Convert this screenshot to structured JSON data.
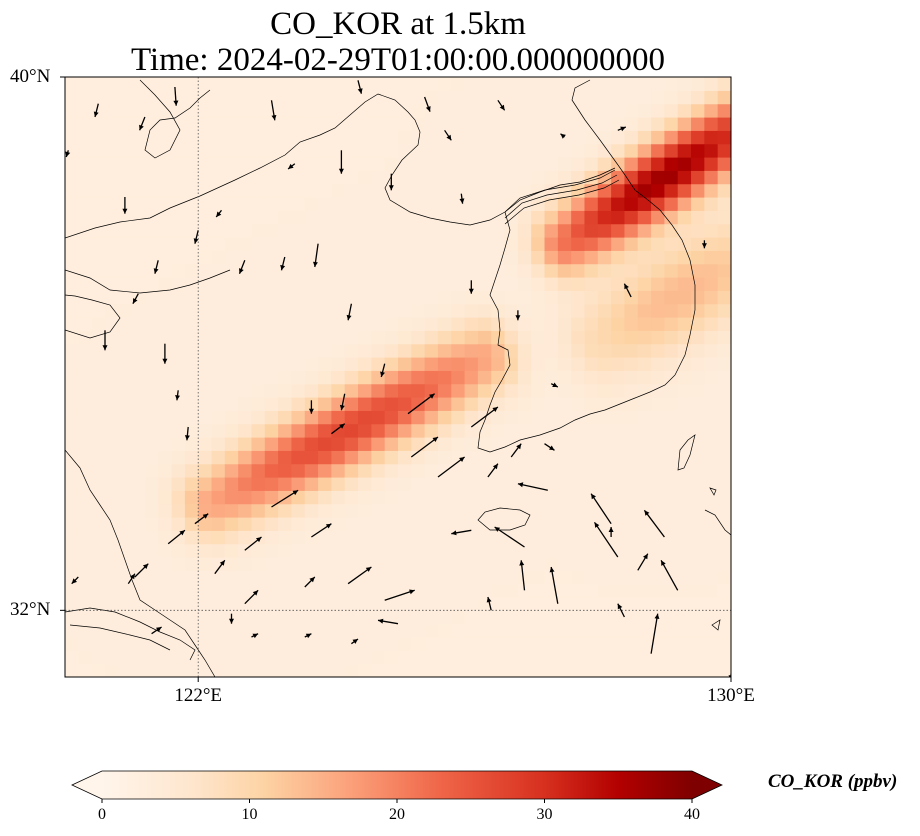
{
  "title": {
    "line1": "CO_KOR at 1.5km",
    "line2": "Time: 2024-02-29T01:00:00.000000000"
  },
  "map": {
    "lon_range": [
      120,
      130
    ],
    "lat_range": [
      31,
      40
    ],
    "lat_ticks": [
      {
        "value": 40,
        "label": "40°N"
      },
      {
        "value": 32,
        "label": "32°N"
      }
    ],
    "lon_ticks": [
      {
        "value": 122,
        "label": "122°E"
      },
      {
        "value": 130,
        "label": "130°E"
      }
    ],
    "gridlines": "dotted",
    "field": {
      "variable": "CO_KOR",
      "units": "ppbv",
      "background_ppbv": 3,
      "plumes": [
        {
          "name": "main-plume",
          "start": [
            122.2,
            33.6
          ],
          "end": [
            126.3,
            35.8
          ],
          "peak_ppbv": 24,
          "width_deg": 0.55
        },
        {
          "name": "korea-plume",
          "start": [
            127.5,
            37.5
          ],
          "end": [
            130.5,
            39.5
          ],
          "peak_ppbv": 34,
          "width_deg": 0.5
        },
        {
          "name": "east-sea-plume",
          "start": [
            128.0,
            36.0
          ],
          "end": [
            130.5,
            37.5
          ],
          "peak_ppbv": 11,
          "width_deg": 0.7
        }
      ]
    },
    "wind_vectors_degrees": [
      [
        121.65,
        39.85,
        0.02,
        -0.28
      ],
      [
        121.2,
        39.4,
        -0.08,
        -0.2
      ],
      [
        120.5,
        39.6,
        -0.05,
        -0.2
      ],
      [
        123.1,
        39.65,
        0.05,
        -0.3
      ],
      [
        124.4,
        39.95,
        0.05,
        -0.2
      ],
      [
        125.4,
        39.7,
        0.08,
        -0.22
      ],
      [
        125.7,
        39.2,
        0.1,
        -0.15
      ],
      [
        124.15,
        38.9,
        0.0,
        -0.35
      ],
      [
        124.9,
        38.55,
        0.0,
        -0.25
      ],
      [
        125.95,
        38.25,
        0.02,
        -0.15
      ],
      [
        122.0,
        37.7,
        -0.05,
        -0.2
      ],
      [
        122.7,
        37.25,
        -0.08,
        -0.2
      ],
      [
        121.4,
        37.25,
        -0.05,
        -0.2
      ],
      [
        121.1,
        36.75,
        -0.08,
        -0.15
      ],
      [
        120.9,
        38.2,
        0.0,
        -0.25
      ],
      [
        120.6,
        36.2,
        0.0,
        -0.3
      ],
      [
        121.5,
        36.0,
        0.0,
        -0.3
      ],
      [
        123.8,
        37.5,
        -0.05,
        -0.35
      ],
      [
        123.3,
        37.3,
        -0.05,
        -0.2
      ],
      [
        124.3,
        36.6,
        -0.05,
        -0.25
      ],
      [
        122.35,
        38.0,
        -0.08,
        -0.1
      ],
      [
        121.85,
        34.75,
        -0.02,
        -0.2
      ],
      [
        121.7,
        35.3,
        -0.02,
        -0.15
      ],
      [
        123.7,
        35.15,
        0.0,
        -0.2
      ],
      [
        124.2,
        35.25,
        -0.05,
        -0.25
      ],
      [
        124.8,
        35.7,
        -0.05,
        -0.2
      ],
      [
        125.15,
        34.95,
        0.4,
        0.3
      ],
      [
        125.2,
        34.3,
        0.4,
        0.3
      ],
      [
        125.6,
        34.0,
        0.4,
        0.3
      ],
      [
        126.7,
        34.3,
        0.15,
        0.2
      ],
      [
        126.35,
        34.0,
        0.15,
        0.2
      ],
      [
        126.1,
        34.75,
        0.4,
        0.3
      ],
      [
        124.0,
        34.65,
        0.2,
        0.15
      ],
      [
        123.1,
        33.55,
        0.4,
        0.25
      ],
      [
        123.7,
        33.1,
        0.3,
        0.2
      ],
      [
        122.7,
        32.9,
        0.25,
        0.2
      ],
      [
        121.95,
        33.3,
        0.2,
        0.15
      ],
      [
        121.55,
        33.0,
        0.25,
        0.2
      ],
      [
        122.25,
        32.55,
        0.15,
        0.2
      ],
      [
        122.7,
        32.1,
        0.2,
        0.2
      ],
      [
        123.6,
        32.35,
        0.15,
        0.15
      ],
      [
        124.8,
        32.15,
        0.45,
        0.15
      ],
      [
        124.25,
        32.4,
        0.35,
        0.25
      ],
      [
        121.05,
        32.5,
        0.2,
        0.2
      ],
      [
        120.95,
        32.4,
        0.1,
        0.15
      ],
      [
        122.5,
        31.95,
        0.0,
        -0.15
      ],
      [
        121.3,
        31.65,
        0.15,
        0.1
      ],
      [
        122.8,
        31.6,
        0.1,
        0.05
      ],
      [
        123.6,
        31.6,
        0.1,
        0.05
      ],
      [
        124.3,
        31.5,
        0.1,
        0.07
      ],
      [
        125.0,
        31.8,
        -0.3,
        0.05
      ],
      [
        126.1,
        33.2,
        -0.3,
        -0.05
      ],
      [
        127.25,
        33.8,
        -0.45,
        0.1
      ],
      [
        126.9,
        32.95,
        -0.45,
        0.3
      ],
      [
        128.3,
        32.8,
        -0.35,
        0.52
      ],
      [
        128.2,
        33.3,
        -0.3,
        0.45
      ],
      [
        129.0,
        33.1,
        -0.3,
        0.4
      ],
      [
        129.2,
        32.3,
        -0.25,
        0.45
      ],
      [
        127.4,
        32.1,
        -0.1,
        0.55
      ],
      [
        126.9,
        32.3,
        -0.05,
        0.45
      ],
      [
        126.4,
        32.0,
        -0.05,
        0.2
      ],
      [
        128.4,
        31.9,
        -0.1,
        0.2
      ],
      [
        128.2,
        33.1,
        0.0,
        0.15
      ],
      [
        128.6,
        32.6,
        0.15,
        0.25
      ],
      [
        128.8,
        31.35,
        0.1,
        0.6
      ],
      [
        127.3,
        35.4,
        0.1,
        -0.05
      ],
      [
        127.2,
        34.5,
        0.15,
        -0.1
      ],
      [
        126.8,
        36.5,
        0.0,
        -0.15
      ],
      [
        126.1,
        36.95,
        0.0,
        -0.2
      ],
      [
        128.5,
        36.7,
        -0.1,
        0.2
      ],
      [
        129.6,
        37.55,
        0.0,
        -0.12
      ],
      [
        128.3,
        39.2,
        0.12,
        0.05
      ],
      [
        127.5,
        39.1,
        -0.06,
        0.05
      ],
      [
        126.5,
        39.65,
        0.1,
        -0.15
      ],
      [
        130.0,
        35.6,
        0.15,
        -0.25
      ],
      [
        130.0,
        31.05,
        0.0,
        -0.1
      ],
      [
        120.05,
        38.9,
        -0.03,
        -0.1
      ],
      [
        120.2,
        32.5,
        -0.1,
        -0.1
      ],
      [
        123.45,
        38.7,
        -0.1,
        -0.08
      ]
    ]
  },
  "colorbar": {
    "title": "CO_KOR (ppbv)",
    "min": 0,
    "max": 40,
    "extend": "both",
    "ticks": [
      {
        "value": 0,
        "label": "0"
      },
      {
        "value": 10,
        "label": "10"
      },
      {
        "value": 20,
        "label": "20"
      },
      {
        "value": 30,
        "label": "30"
      },
      {
        "value": 40,
        "label": "40"
      }
    ],
    "colormap_stops": [
      {
        "v": 0,
        "color": "#fff5eb"
      },
      {
        "v": 5,
        "color": "#fee6ce"
      },
      {
        "v": 10,
        "color": "#fdd0a2"
      },
      {
        "v": 15,
        "color": "#fdae6b"
      },
      {
        "v": 20,
        "color": "#f16913"
      },
      {
        "v": 25,
        "color": "#e6550d"
      },
      {
        "v": 30,
        "color": "#d94801"
      },
      {
        "v": 35,
        "color": "#a50f15"
      },
      {
        "v": 40,
        "color": "#67000d"
      }
    ],
    "reds_stops": [
      {
        "v": 0,
        "color": "#fff5eb"
      },
      {
        "v": 6,
        "color": "#fee6ce"
      },
      {
        "v": 11,
        "color": "#fdd3a4"
      },
      {
        "v": 17,
        "color": "#fb9f79"
      },
      {
        "v": 23,
        "color": "#ef6548"
      },
      {
        "v": 30,
        "color": "#d7301f"
      },
      {
        "v": 35,
        "color": "#b30000"
      },
      {
        "v": 40,
        "color": "#7f0000"
      }
    ]
  }
}
